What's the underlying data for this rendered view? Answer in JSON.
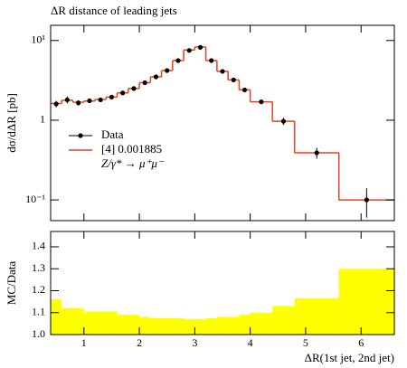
{
  "chart_data": [
    {
      "type": "histogram",
      "title": "ΔR distance of leading jets",
      "ylabel": "dσ/dΔR [pb]",
      "log_y": true,
      "bins": [
        0.4,
        0.6,
        0.8,
        1.0,
        1.2,
        1.4,
        1.6,
        1.8,
        2.0,
        2.2,
        2.4,
        2.6,
        2.8,
        3.0,
        3.2,
        3.4,
        3.6,
        3.8,
        4.0,
        4.4,
        4.8,
        5.6,
        6.6
      ],
      "series": [
        {
          "name": "Data",
          "color": "#000000",
          "values": [
            1.6,
            1.8,
            1.65,
            1.75,
            1.8,
            1.95,
            2.2,
            2.5,
            2.95,
            3.5,
            4.2,
            5.6,
            7.5,
            8.2,
            5.6,
            4.1,
            3.2,
            2.4,
            1.7,
            0.97,
            0.39,
            0.1
          ],
          "errors": [
            0.15,
            0.18,
            0.12,
            0.1,
            0.1,
            0.1,
            0.1,
            0.12,
            0.12,
            0.14,
            0.16,
            0.2,
            0.25,
            0.3,
            0.25,
            0.18,
            0.14,
            0.12,
            0.1,
            0.1,
            0.06,
            0.04
          ]
        },
        {
          "name": "[4] 0.001885",
          "color": "#e8401c",
          "values": [
            1.62,
            1.78,
            1.68,
            1.74,
            1.82,
            1.95,
            2.2,
            2.5,
            2.95,
            3.5,
            4.2,
            5.6,
            7.6,
            8.3,
            5.6,
            4.1,
            3.2,
            2.4,
            1.7,
            0.97,
            0.39,
            0.1
          ]
        }
      ],
      "legend_note": "Z/γ* → μ⁺μ⁻",
      "xlim": [
        0.4,
        6.6
      ],
      "ylim": [
        0.055,
        15.5
      ],
      "xticks": [
        1,
        2,
        3,
        4,
        5,
        6
      ],
      "yticks": [
        {
          "value": 0.1,
          "label": "10⁻¹"
        },
        1,
        {
          "value": 10,
          "label": "10¹"
        }
      ]
    },
    {
      "type": "histogram",
      "ylabel": "MC/Data",
      "xlabel": "ΔR(1st jet, 2nd jet)",
      "color": "#ffff00",
      "bins": [
        0.4,
        0.6,
        0.8,
        1.0,
        1.2,
        1.4,
        1.6,
        1.8,
        2.0,
        2.2,
        2.4,
        2.6,
        2.8,
        3.0,
        3.2,
        3.4,
        3.6,
        3.8,
        4.0,
        4.4,
        4.8,
        5.6,
        6.6
      ],
      "values": [
        1.16,
        1.12,
        1.12,
        1.105,
        1.105,
        1.105,
        1.09,
        1.09,
        1.08,
        1.075,
        1.075,
        1.075,
        1.07,
        1.07,
        1.075,
        1.08,
        1.08,
        1.09,
        1.1,
        1.13,
        1.165,
        1.3
      ],
      "xlim": [
        0.4,
        6.6
      ],
      "ylim": [
        1.0,
        1.47
      ],
      "xticks": [
        1,
        2,
        3,
        4,
        5,
        6
      ],
      "yticks": [
        {
          "value": 1.0,
          "label": "1.0"
        },
        {
          "value": 1.1,
          "label": "1.1"
        },
        {
          "value": 1.2,
          "label": "1.2"
        },
        {
          "value": 1.3,
          "label": "1.3"
        },
        {
          "value": 1.4,
          "label": "1.4"
        }
      ]
    }
  ]
}
